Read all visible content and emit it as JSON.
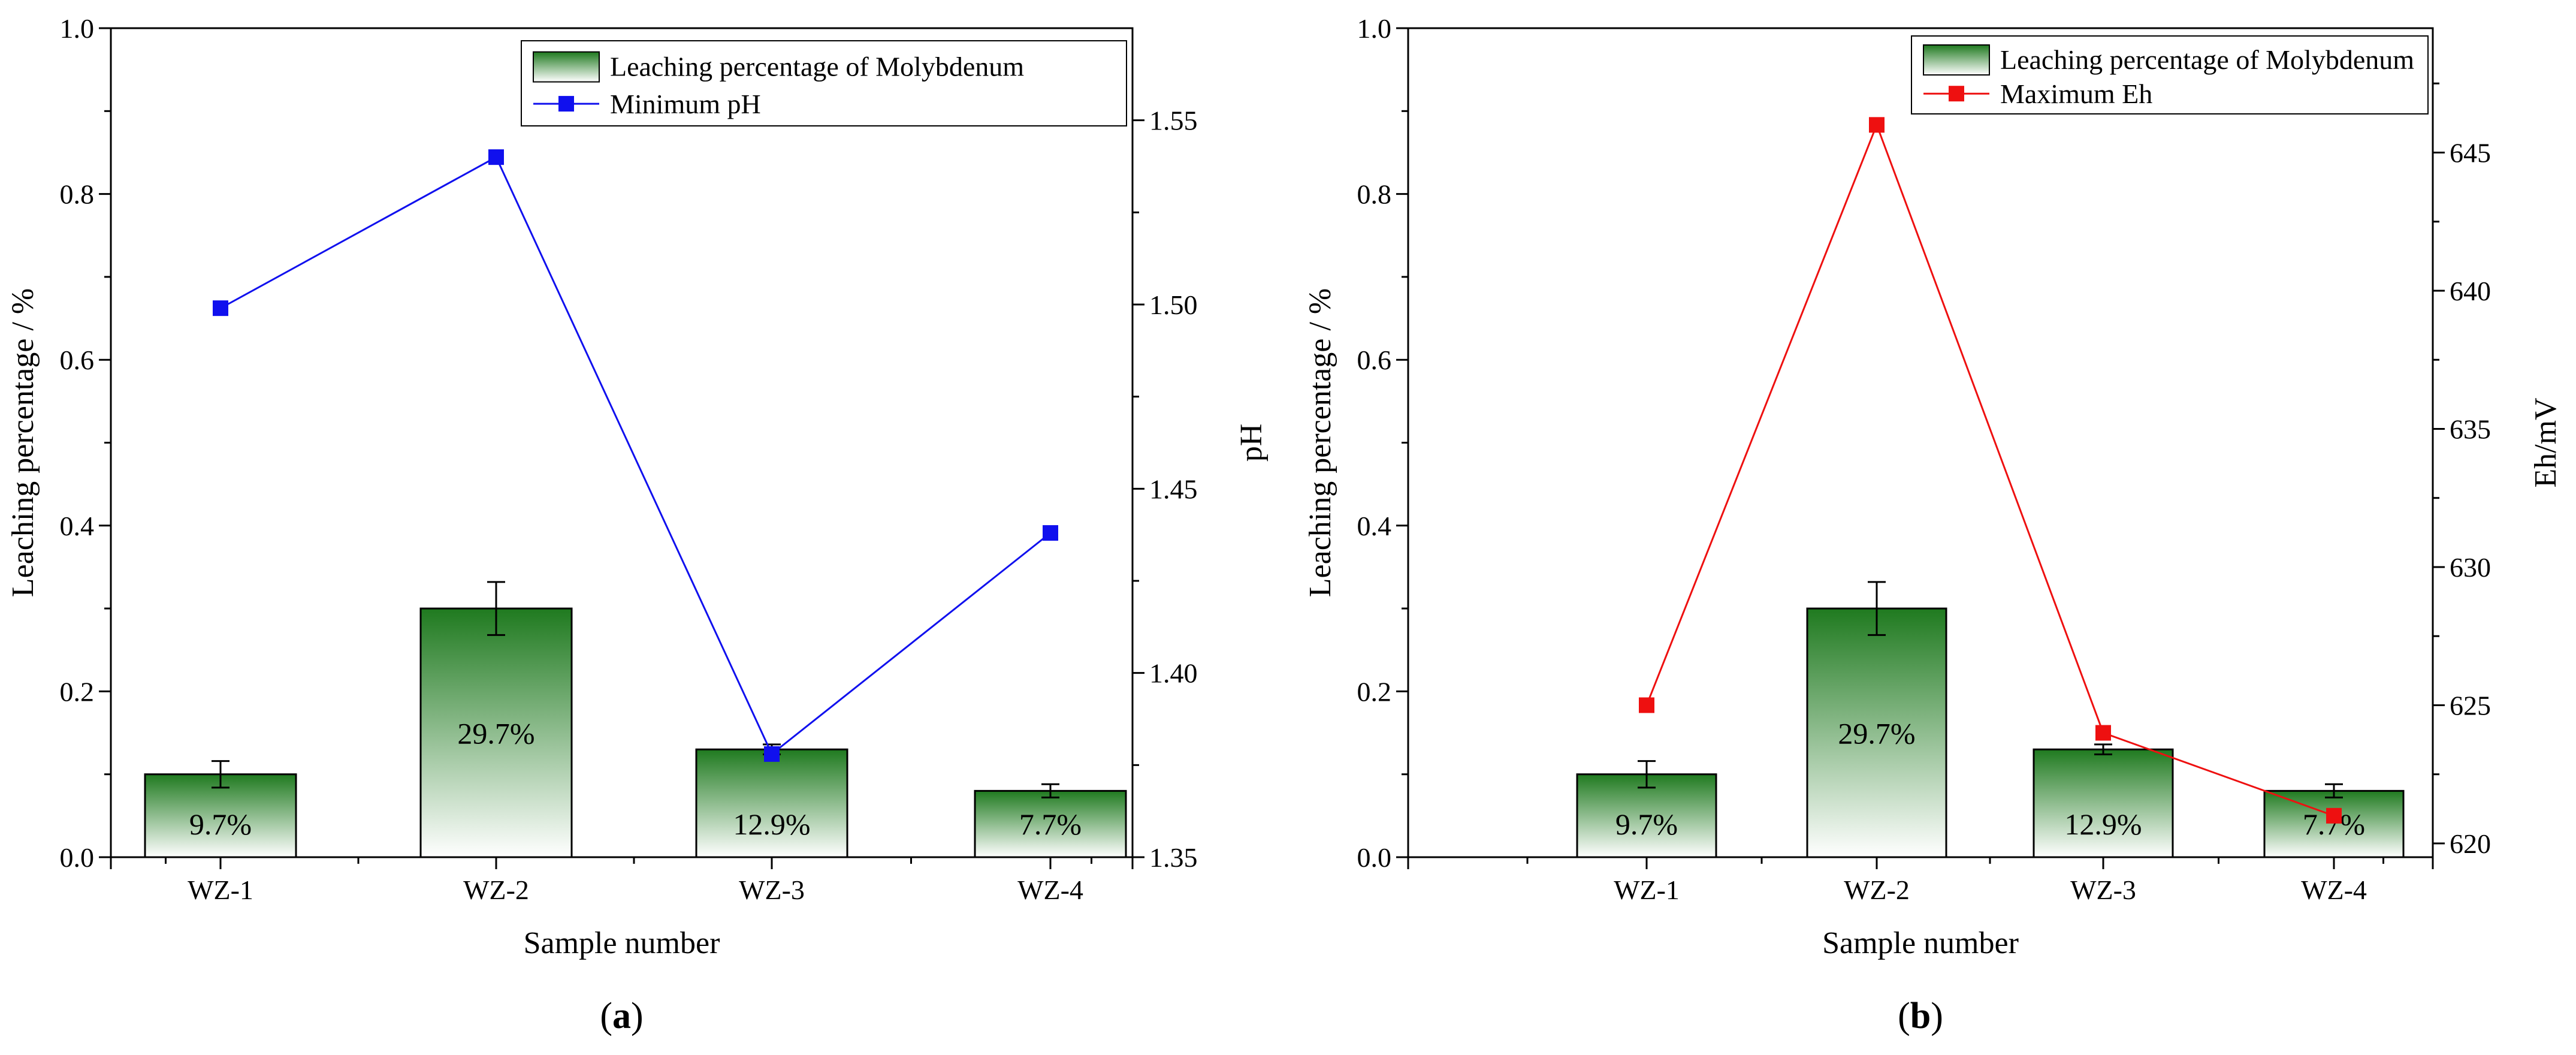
{
  "chart_data": [
    {
      "panel_label": "(a)",
      "panel_letter": "a",
      "type": "bar",
      "categories": [
        "WZ-1",
        "WZ-2",
        "WZ-3",
        "WZ-4"
      ],
      "xlabel": "Sample number",
      "ylabel": "Leaching percentage / %",
      "ylim": [
        0,
        1.0
      ],
      "yticks": [
        "0.0",
        "0.2",
        "0.4",
        "0.6",
        "0.8",
        "1.0"
      ],
      "bar_series": {
        "name": "Leaching percentage of  Molybdenum",
        "values": [
          0.1,
          0.3,
          0.13,
          0.08
        ],
        "errors": [
          0.016,
          0.032,
          0.006,
          0.008
        ],
        "labels": [
          "9.7%",
          "29.7%",
          "12.9%",
          "7.7%"
        ],
        "color": "#1f7a1f"
      },
      "line_series": {
        "name": "Minimum pH",
        "values": [
          1.499,
          1.54,
          1.378,
          1.438
        ],
        "color": "#1010ee"
      },
      "y2label": "pH",
      "y2lim": [
        1.35,
        1.575
      ],
      "y2ticks": [
        "1.35",
        "1.40",
        "1.45",
        "1.50",
        "1.55"
      ],
      "legend": "top-right"
    },
    {
      "panel_label": "(b)",
      "panel_letter": "b",
      "type": "bar",
      "categories": [
        "WZ-1",
        "WZ-2",
        "WZ-3",
        "WZ-4"
      ],
      "xlabel": "Sample number",
      "ylabel": "Leaching percentage / %",
      "ylim": [
        0,
        1.0
      ],
      "yticks": [
        "0.0",
        "0.2",
        "0.4",
        "0.6",
        "0.8",
        "1.0"
      ],
      "bar_series": {
        "name": "Leaching percentage of  Molybdenum",
        "values": [
          0.1,
          0.3,
          0.13,
          0.08
        ],
        "errors": [
          0.016,
          0.032,
          0.006,
          0.008
        ],
        "labels": [
          "9.7%",
          "29.7%",
          "12.9%",
          "7.7%"
        ],
        "color": "#1f7a1f"
      },
      "line_series": {
        "name": "Maximum Eh",
        "values": [
          625,
          646,
          624,
          621
        ],
        "color": "#ee1010"
      },
      "y2label": "Eh/mV",
      "y2lim": [
        619.5,
        649.5
      ],
      "y2ticks": [
        "620",
        "625",
        "630",
        "635",
        "640",
        "645"
      ],
      "legend": "top-right"
    }
  ]
}
